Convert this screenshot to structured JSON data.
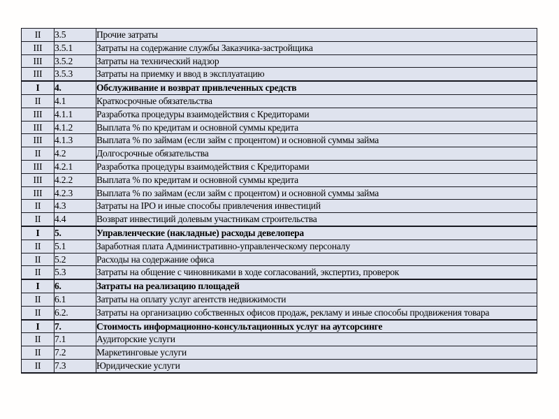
{
  "table": {
    "columns": [
      "level",
      "code",
      "name"
    ],
    "rows": [
      {
        "level": "II",
        "code": "3.5",
        "name": "Прочие затраты"
      },
      {
        "level": "III",
        "code": "3.5.1",
        "name": "Затраты на содержание службы Заказчика-застройщика"
      },
      {
        "level": "III",
        "code": "3.5.2",
        "name": "Затраты на технический надзор"
      },
      {
        "level": "III",
        "code": "3.5.3",
        "name": "Затраты на приемку и ввод в эксплуатацию"
      },
      {
        "level": "I",
        "code": "4.",
        "name": "Обслуживание и возврат привлеченных средств"
      },
      {
        "level": "II",
        "code": "4.1",
        "name": "Краткосрочные обязательства"
      },
      {
        "level": "III",
        "code": "4.1.1",
        "name": "Разработка процедуры взаимодействия с Кредиторами"
      },
      {
        "level": "III",
        "code": "4.1.2",
        "name": "Выплата % по кредитам и основной суммы кредита"
      },
      {
        "level": "III",
        "code": "4.1.3",
        "name": "Выплата % по займам (если займ с процентом) и основной суммы займа"
      },
      {
        "level": "II",
        "code": "4.2",
        "name": "Долгосрочные обязательства"
      },
      {
        "level": "III",
        "code": "4.2.1",
        "name": "Разработка процедуры взаимодействия с Кредиторами"
      },
      {
        "level": "III",
        "code": "4.2.2",
        "name": "Выплата % по кредитам и основной суммы кредита"
      },
      {
        "level": "III",
        "code": "4.2.3",
        "name": "Выплата % по займам (если займ с процентом) и основной суммы займа"
      },
      {
        "level": "II",
        "code": "4.3",
        "name": "Затраты на IPO и иные способы привлечения инвестиций"
      },
      {
        "level": "II",
        "code": "4.4",
        "name": "Возврат инвестиций долевым участникам строительства"
      },
      {
        "level": "I",
        "code": "5.",
        "name": "Управленческие (накладные) расходы девелопера"
      },
      {
        "level": "II",
        "code": "5.1",
        "name": "Заработная плата Административно-управленческому персоналу"
      },
      {
        "level": "II",
        "code": "5.2",
        "name": "Расходы на содержание офиса"
      },
      {
        "level": "II",
        "code": "5.3",
        "name": "Затраты на общение с чиновниками в ходе согласований, экспертиз, проверок"
      },
      {
        "level": "I",
        "code": "6.",
        "name": "Затраты на реализацию площадей"
      },
      {
        "level": "II",
        "code": "6.1",
        "name": "Затраты на оплату услуг агентств недвижимости"
      },
      {
        "level": "II",
        "code": "6.2.",
        "name": "Затраты на организацию собственных офисов продаж, рекламу и иные способы продвижения товара"
      },
      {
        "level": "I",
        "code": "7.",
        "name": "Стоимость информационно-консультационных услуг на аутсорсинге"
      },
      {
        "level": "II",
        "code": "7.1",
        "name": "Аудиторские услуги"
      },
      {
        "level": "II",
        "code": "7.2",
        "name": "Маркетинговые услуги"
      },
      {
        "level": "II",
        "code": "7.3",
        "name": "Юридические услуги"
      }
    ]
  },
  "colors": {
    "cell_bg": "#dfe3ee",
    "border": "#17171f",
    "text": "#000000",
    "page_bg": "#fffefd"
  }
}
